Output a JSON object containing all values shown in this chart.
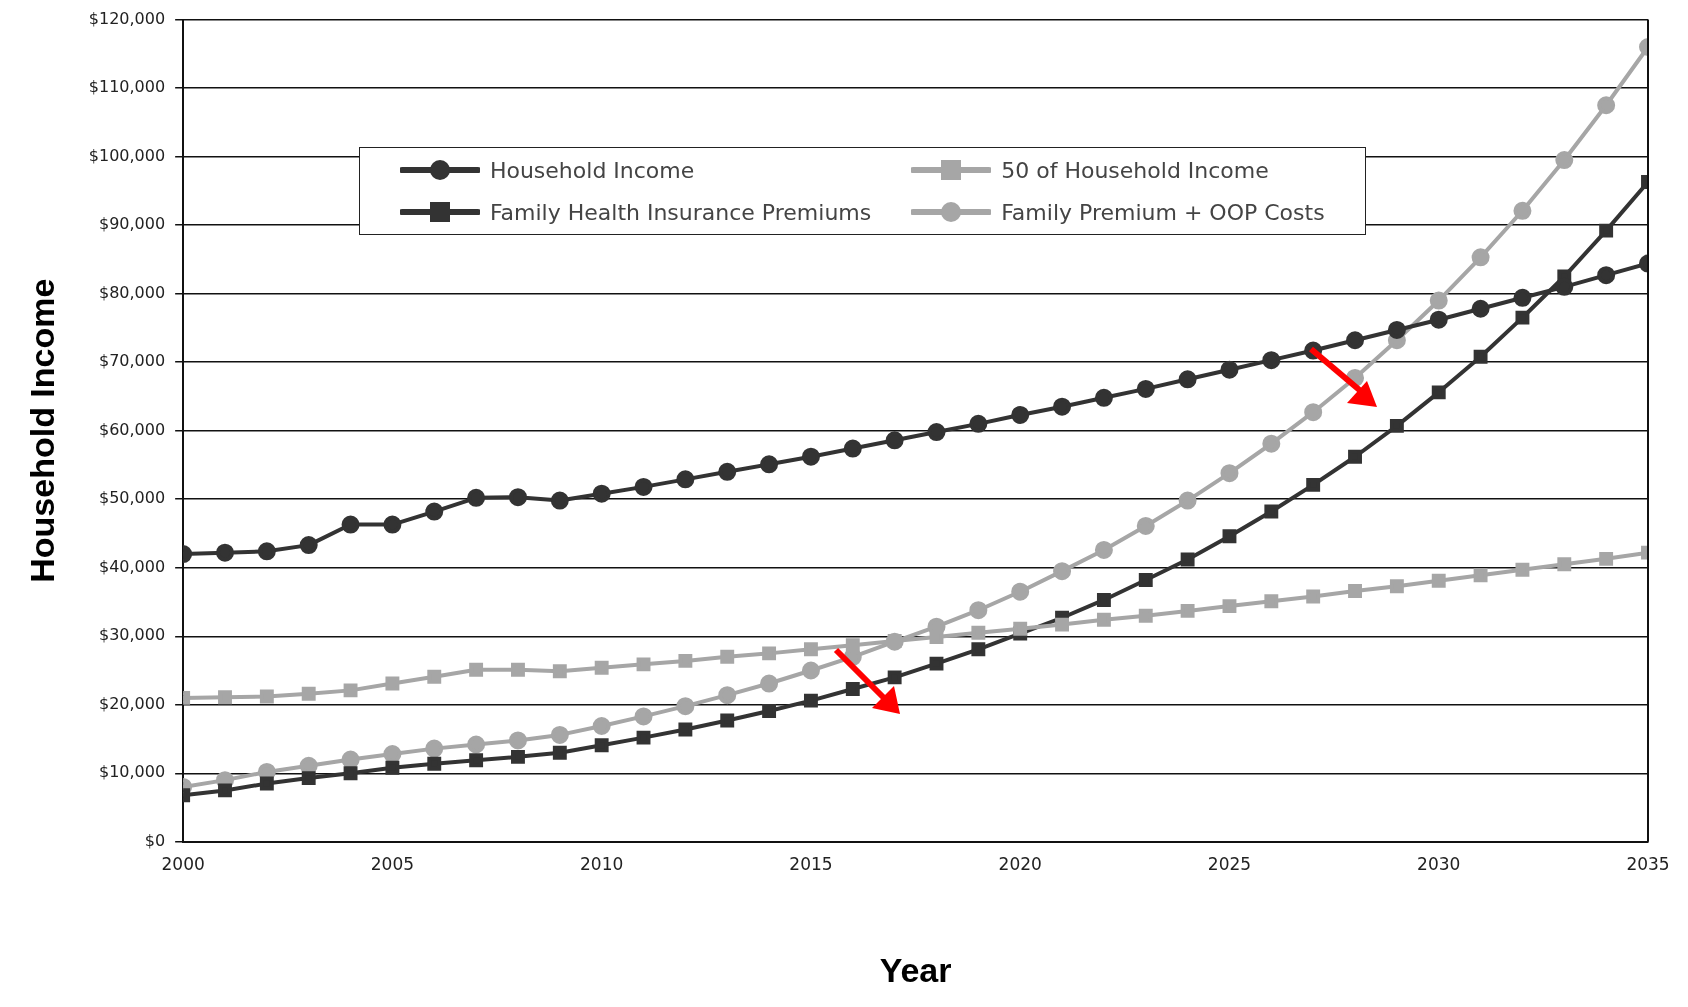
{
  "chart_data": {
    "type": "line",
    "xlabel": "Year",
    "ylabel": "Household Income",
    "x": [
      2000,
      2001,
      2002,
      2003,
      2004,
      2005,
      2006,
      2007,
      2008,
      2009,
      2010,
      2011,
      2012,
      2013,
      2014,
      2015,
      2016,
      2017,
      2018,
      2019,
      2020,
      2021,
      2022,
      2023,
      2024,
      2025,
      2026,
      2027,
      2028,
      2029,
      2030,
      2031,
      2032,
      2033,
      2034,
      2035
    ],
    "series": [
      {
        "name": "Household Income",
        "color": "#333333",
        "marker": "circle",
        "values": [
          42000,
          42200,
          42400,
          43300,
          46300,
          46300,
          48200,
          50200,
          50300,
          49800,
          50800,
          51800,
          52900,
          54000,
          55100,
          56200,
          57400,
          58600,
          59800,
          61000,
          62300,
          63500,
          64800,
          66100,
          67500,
          68900,
          70300,
          71700,
          73200,
          74700,
          76200,
          77800,
          79400,
          81000,
          82700,
          84400
        ]
      },
      {
        "name": "50 of Household Income",
        "color": "#a6a6a6",
        "marker": "square",
        "values": [
          21000,
          21100,
          21200,
          21600,
          22100,
          23100,
          24100,
          25100,
          25100,
          24900,
          25400,
          25900,
          26400,
          27000,
          27500,
          28100,
          28700,
          29300,
          29900,
          30500,
          31100,
          31700,
          32400,
          33000,
          33700,
          34400,
          35100,
          35800,
          36600,
          37300,
          38100,
          38900,
          39700,
          40500,
          41300,
          42200
        ]
      },
      {
        "name": "Family Health Insurance Premiums",
        "color": "#333333",
        "marker": "square",
        "values": [
          6800,
          7500,
          8500,
          9300,
          10000,
          10800,
          11400,
          11900,
          12400,
          13000,
          14100,
          15200,
          16400,
          17700,
          19100,
          20600,
          22300,
          24000,
          26000,
          28100,
          30400,
          32700,
          35300,
          38200,
          41200,
          44600,
          48200,
          52100,
          56200,
          60700,
          65600,
          70800,
          76500,
          82500,
          89200,
          96300
        ]
      },
      {
        "name": "Family Premium + OOP Costs",
        "color": "#a6a6a6",
        "marker": "circle",
        "values": [
          8000,
          9000,
          10200,
          11100,
          12000,
          12800,
          13600,
          14200,
          14800,
          15600,
          16900,
          18300,
          19800,
          21400,
          23100,
          25000,
          27000,
          29200,
          31400,
          33800,
          36500,
          39500,
          42600,
          46100,
          49800,
          53800,
          58100,
          62700,
          67700,
          73200,
          79000,
          85300,
          92100,
          99500,
          107500,
          116000
        ]
      }
    ],
    "xlim": [
      2000,
      2035
    ],
    "xticks": [
      2000,
      2005,
      2010,
      2015,
      2020,
      2025,
      2030,
      2035
    ],
    "ylim": [
      0,
      120000
    ],
    "yticks": [
      {
        "value": 0,
        "label": "$0"
      },
      {
        "value": 10000,
        "label": "$10,000"
      },
      {
        "value": 20000,
        "label": "$20,000"
      },
      {
        "value": 30000,
        "label": "$30,000"
      },
      {
        "value": 40000,
        "label": "$40,000"
      },
      {
        "value": 50000,
        "label": "$50,000"
      },
      {
        "value": 60000,
        "label": "$60,000"
      },
      {
        "value": 70000,
        "label": "$70,000"
      },
      {
        "value": 80000,
        "label": "$80,000"
      },
      {
        "value": 90000,
        "label": "$90,000"
      },
      {
        "value": 100000,
        "label": "$100,000"
      },
      {
        "value": 110000,
        "label": "$110,000"
      },
      {
        "value": 120000,
        "label": "$120,000"
      }
    ],
    "grid": "y",
    "legend": "top",
    "line_style": "solid"
  }
}
